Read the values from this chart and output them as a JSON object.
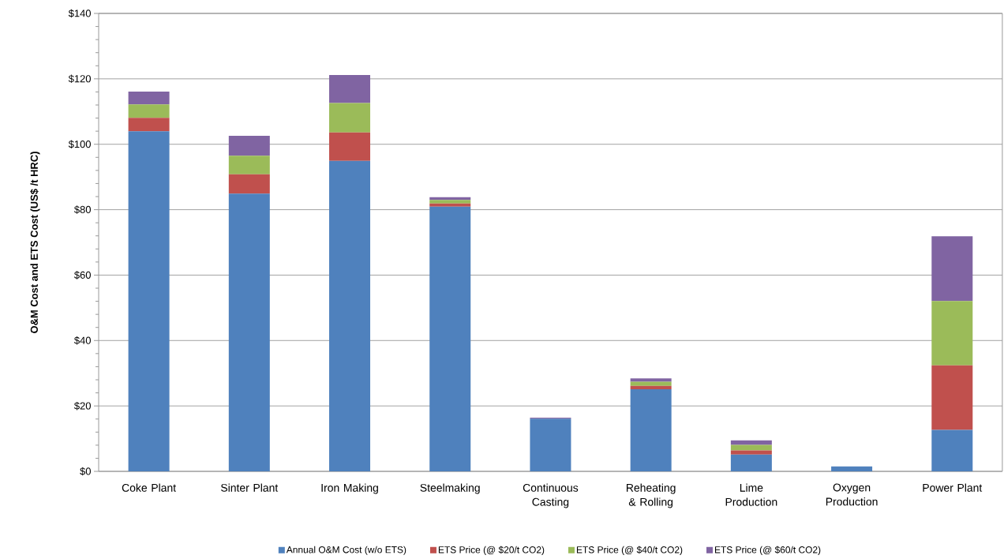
{
  "chart_data": {
    "type": "bar",
    "stacked": true,
    "ylabel": "O&M Cost and ETS Cost (US$ /t HRC)",
    "categories": [
      "Coke Plant",
      "Sinter Plant",
      "Iron Making",
      "Steelmaking",
      "Continuous Casting",
      "Reheating & Rolling",
      "Lime Production",
      "Oxygen Production",
      "Power Plant"
    ],
    "series": [
      {
        "name": "Annual O&M Cost (w/o ETS)",
        "color": "#4f81bd",
        "values": [
          104,
          84.9,
          94.9,
          80.9,
          16.1,
          25.1,
          5.1,
          1.5,
          12.7
        ]
      },
      {
        "name": "ETS Price (@ $20/t CO2)",
        "color": "#c0504d",
        "values": [
          4.1,
          5.9,
          8.7,
          1.0,
          null,
          1.0,
          1.3,
          0,
          19.7
        ]
      },
      {
        "name": "ETS Price (@ $40/t CO2)",
        "color": "#9bbb59",
        "values": [
          4.1,
          5.7,
          9.0,
          1.1,
          null,
          1.3,
          1.7,
          0,
          19.7
        ]
      },
      {
        "name": "ETS Price (@ $60/t CO2)",
        "color": "#8064a2",
        "values": [
          3.9,
          6.1,
          8.6,
          0.8,
          0.3,
          1.0,
          1.4,
          0,
          19.8
        ]
      }
    ],
    "ylim": [
      0,
      140
    ],
    "yticks": [
      {
        "value": 0,
        "label": "$0"
      },
      {
        "value": 20,
        "label": "$20"
      },
      {
        "value": 40,
        "label": "$40"
      },
      {
        "value": 60,
        "label": "$60"
      },
      {
        "value": 80,
        "label": "$80"
      },
      {
        "value": 100,
        "label": "$100"
      },
      {
        "value": 120,
        "label": "$120"
      },
      {
        "value": 140,
        "label": "$140"
      }
    ],
    "grid": "y",
    "legend": "bottom"
  }
}
